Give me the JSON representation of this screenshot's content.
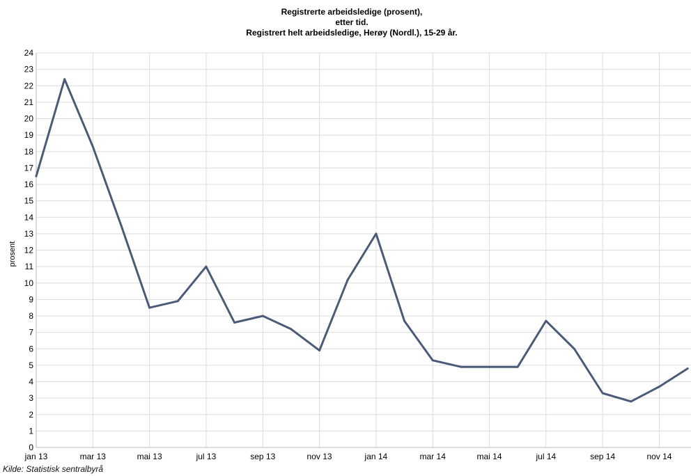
{
  "chart_data": {
    "type": "line",
    "title_lines": [
      "Registrerte arbeidsledige (prosent),",
      "etter tid.",
      "Registrert helt arbeidsledige, Herøy (Nordl.), 15-29 år."
    ],
    "xlabel": "",
    "ylabel": "prosent",
    "ylim": [
      0,
      24
    ],
    "y_ticks": [
      0,
      1,
      2,
      3,
      4,
      5,
      6,
      7,
      8,
      9,
      10,
      11,
      12,
      13,
      14,
      15,
      16,
      17,
      18,
      19,
      20,
      21,
      22,
      23,
      24
    ],
    "x_tick_labels": [
      "jan 13",
      "mar 13",
      "mai 13",
      "jul 13",
      "sep 13",
      "nov 13",
      "jan 14",
      "mar 14",
      "mai 14",
      "jul 14",
      "sep 14",
      "nov 14"
    ],
    "x": [
      "jan 13",
      "feb 13",
      "mar 13",
      "apr 13",
      "mai 13",
      "jun 13",
      "jul 13",
      "aug 13",
      "sep 13",
      "okt 13",
      "nov 13",
      "des 13",
      "jan 14",
      "feb 14",
      "mar 14",
      "apr 14",
      "mai 14",
      "jun 14",
      "jul 14",
      "aug 14",
      "sep 14",
      "okt 14",
      "nov 14",
      "des 14"
    ],
    "series": [
      {
        "values": [
          16.5,
          22.4,
          18.3,
          13.5,
          8.5,
          8.9,
          11.0,
          7.6,
          8.0,
          7.2,
          5.9,
          10.2,
          13.0,
          7.7,
          5.3,
          4.9,
          4.9,
          4.9,
          7.7,
          6.0,
          3.3,
          2.8,
          3.7,
          4.8
        ],
        "color": "#4a5a78"
      }
    ],
    "grid": true,
    "legend": "none",
    "source": "Kilde: Statistisk sentralbyrå"
  }
}
